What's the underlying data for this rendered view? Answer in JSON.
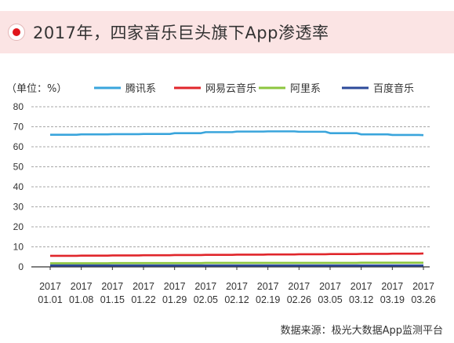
{
  "header": {
    "title": "2017年，四家音乐巨头旗下App渗透率",
    "accent": "#e0161c",
    "band_color": "#fbe4e4"
  },
  "chart_data": {
    "type": "line",
    "unit_label": "（单位：%）",
    "x": [
      "2017 01.01",
      "2017 01.08",
      "2017 01.15",
      "2017 01.22",
      "2017 01.29",
      "2017 02.05",
      "2017 02.12",
      "2017 02.19",
      "2017 02.26",
      "2017 03.05",
      "2017 03.12",
      "2017 03.19",
      "2017 03.26"
    ],
    "x_years": [
      "2017",
      "2017",
      "2017",
      "2017",
      "2017",
      "2017",
      "2017",
      "2017",
      "2017",
      "2017",
      "2017",
      "2017",
      "2017"
    ],
    "x_dates": [
      "01.01",
      "01.08",
      "01.15",
      "01.22",
      "01.29",
      "02.05",
      "02.12",
      "02.19",
      "02.26",
      "03.05",
      "03.12",
      "03.19",
      "03.26"
    ],
    "ylim": [
      0,
      80
    ],
    "yticks": [
      0,
      10,
      20,
      30,
      40,
      50,
      60,
      70,
      80
    ],
    "grid": true,
    "legend_position": "top",
    "series": [
      {
        "name": "腾讯系",
        "color": "#3aa5dc",
        "values": [
          66.0,
          66.2,
          66.3,
          66.4,
          66.8,
          67.3,
          67.6,
          67.7,
          67.5,
          66.8,
          66.2,
          65.9,
          65.8
        ]
      },
      {
        "name": "网易云音乐",
        "color": "#e0262b",
        "values": [
          5.5,
          5.6,
          5.7,
          5.8,
          5.9,
          6.0,
          6.1,
          6.2,
          6.3,
          6.4,
          6.5,
          6.6,
          6.7
        ]
      },
      {
        "name": "阿里系",
        "color": "#8cc63f",
        "values": [
          1.8,
          1.8,
          1.9,
          1.9,
          1.9,
          2.0,
          2.0,
          2.0,
          2.0,
          2.0,
          2.1,
          2.1,
          2.1
        ]
      },
      {
        "name": "百度音乐",
        "color": "#2c4a9a",
        "values": [
          0.7,
          0.7,
          0.7,
          0.7,
          0.7,
          0.7,
          0.7,
          0.7,
          0.7,
          0.7,
          0.7,
          0.7,
          0.7
        ]
      }
    ]
  },
  "footer": {
    "source": "数据来源：极光大数据App监测平台"
  }
}
